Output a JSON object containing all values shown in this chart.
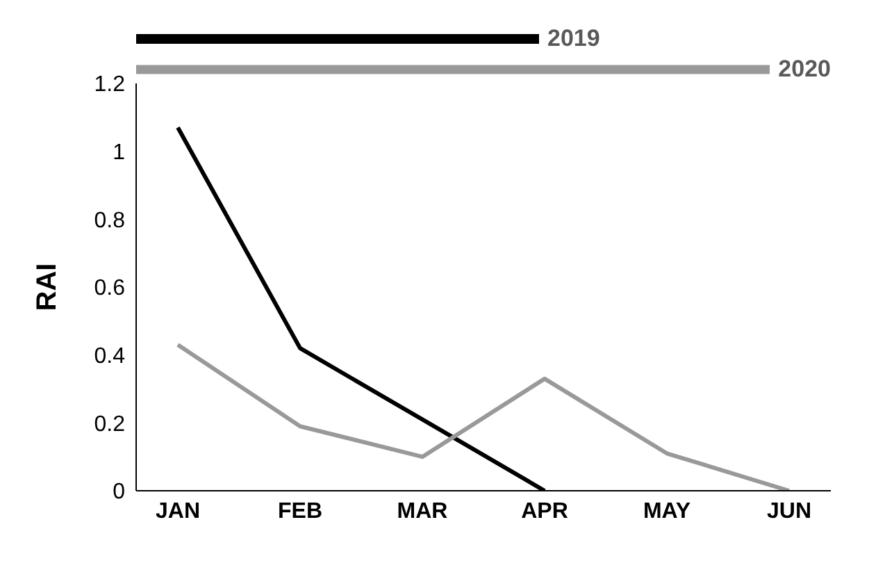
{
  "chart_data": {
    "type": "line",
    "ylabel": "RAI",
    "categories": [
      "JAN",
      "FEB",
      "MAR",
      "APR",
      "MAY",
      "JUN"
    ],
    "series": [
      {
        "name": "2019",
        "color": "#000000",
        "values": [
          1.07,
          0.42,
          0.21,
          0.0,
          null,
          null
        ]
      },
      {
        "name": "2020",
        "color": "#999999",
        "values": [
          0.43,
          0.19,
          0.1,
          0.33,
          0.11,
          0.0
        ]
      }
    ],
    "ylim": [
      0,
      1.2
    ],
    "yticks": [
      0,
      0.2,
      0.4,
      0.6,
      0.8,
      1,
      1.2
    ],
    "grid": false,
    "legend": "top",
    "marker": "none",
    "line_style": "solid"
  }
}
